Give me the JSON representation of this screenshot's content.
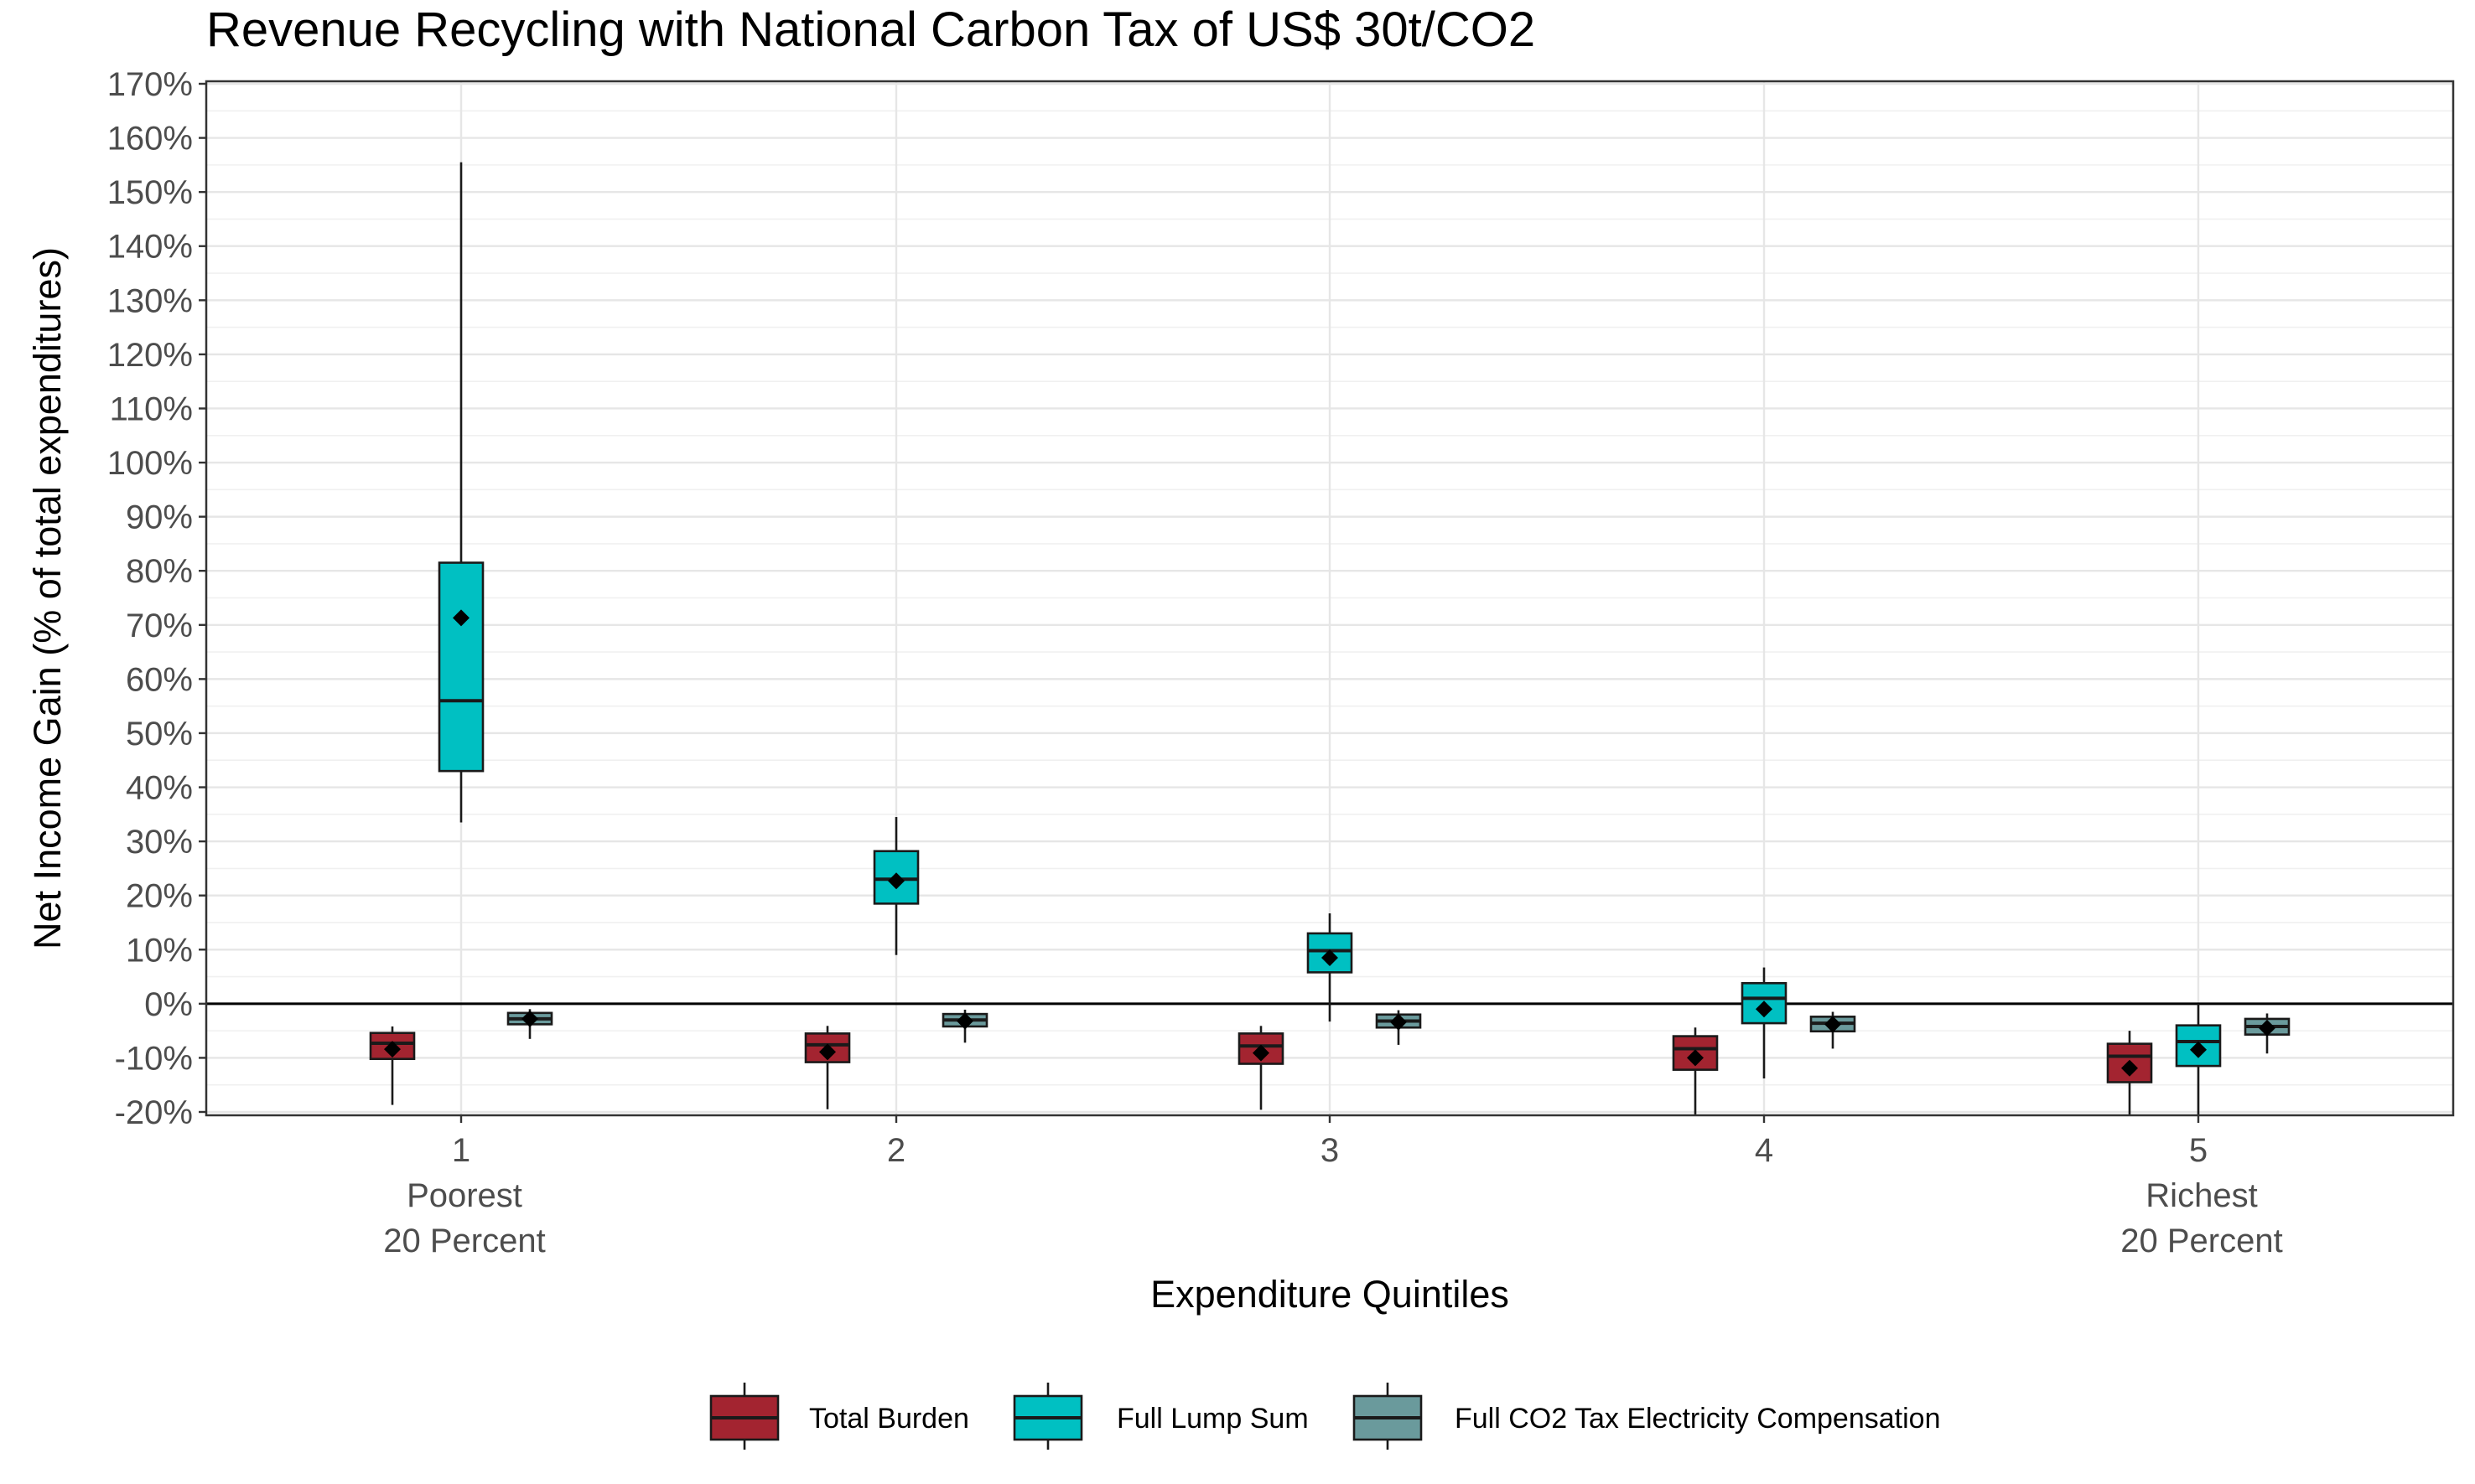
{
  "chart_data": {
    "type": "box",
    "title": "Revenue Recycling with National Carbon Tax of US$ 30t/CO2",
    "xlabel": "Expenditure Quintiles",
    "ylabel": "Net Income Gain (% of total expenditures)",
    "ylim": [
      -20,
      170
    ],
    "y_ticks": [
      -20,
      -10,
      0,
      10,
      20,
      30,
      40,
      50,
      60,
      70,
      80,
      90,
      100,
      110,
      120,
      130,
      140,
      150,
      160,
      170
    ],
    "y_tick_suffix": "%",
    "grid": true,
    "zero_line": true,
    "legend_position": "bottom",
    "categories": [
      {
        "tick": "1",
        "sub1": "Poorest",
        "sub2": "20 Percent"
      },
      {
        "tick": "2",
        "sub1": "",
        "sub2": ""
      },
      {
        "tick": "3",
        "sub1": "",
        "sub2": ""
      },
      {
        "tick": "4",
        "sub1": "",
        "sub2": ""
      },
      {
        "tick": "5",
        "sub1": "Richest",
        "sub2": "20 Percent"
      }
    ],
    "series": [
      {
        "name": "Total Burden",
        "color": "#a32430",
        "boxes": [
          {
            "whisker_low": -18.7,
            "q1": -10.2,
            "median": -7.3,
            "q3": -5.4,
            "whisker_high": -4.2,
            "mean": -8.4
          },
          {
            "whisker_low": -19.5,
            "q1": -10.8,
            "median": -7.6,
            "q3": -5.5,
            "whisker_high": -4.1,
            "mean": -8.9
          },
          {
            "whisker_low": -19.6,
            "q1": -11.1,
            "median": -7.8,
            "q3": -5.5,
            "whisker_high": -4.1,
            "mean": -9.1
          },
          {
            "whisker_low": -20.5,
            "q1": -12.2,
            "median": -8.3,
            "q3": -6.0,
            "whisker_high": -4.4,
            "mean": -10.0
          },
          {
            "whisker_low": -20.5,
            "q1": -14.5,
            "median": -9.7,
            "q3": -7.4,
            "whisker_high": -5.0,
            "mean": -11.9
          }
        ]
      },
      {
        "name": "Full Lump Sum",
        "color": "#00c0c2",
        "boxes": [
          {
            "whisker_low": 33.5,
            "q1": 43.0,
            "median": 56.0,
            "q3": 81.5,
            "whisker_high": 155.5,
            "mean": 71.3
          },
          {
            "whisker_low": 9.0,
            "q1": 18.5,
            "median": 23.0,
            "q3": 28.2,
            "whisker_high": 34.5,
            "mean": 22.7
          },
          {
            "whisker_low": -3.3,
            "q1": 5.8,
            "median": 9.8,
            "q3": 13.0,
            "whisker_high": 16.7,
            "mean": 8.5
          },
          {
            "whisker_low": -13.8,
            "q1": -3.6,
            "median": 1.0,
            "q3": 3.8,
            "whisker_high": 6.7,
            "mean": -1.0
          },
          {
            "whisker_low": -20.5,
            "q1": -11.5,
            "median": -7.0,
            "q3": -4.0,
            "whisker_high": 0.0,
            "mean": -8.5
          }
        ]
      },
      {
        "name": "Full CO2 Tax Electricity Compensation",
        "color": "#6a9a9c",
        "boxes": [
          {
            "whisker_low": -6.5,
            "q1": -3.8,
            "median": -2.8,
            "q3": -1.7,
            "whisker_high": -1.0,
            "mean": -2.8
          },
          {
            "whisker_low": -7.2,
            "q1": -4.2,
            "median": -3.0,
            "q3": -1.9,
            "whisker_high": -1.1,
            "mean": -3.2
          },
          {
            "whisker_low": -7.6,
            "q1": -4.4,
            "median": -3.2,
            "q3": -2.0,
            "whisker_high": -1.2,
            "mean": -3.4
          },
          {
            "whisker_low": -8.3,
            "q1": -5.1,
            "median": -3.6,
            "q3": -2.4,
            "whisker_high": -1.5,
            "mean": -3.8
          },
          {
            "whisker_low": -9.2,
            "q1": -5.7,
            "median": -4.2,
            "q3": -2.8,
            "whisker_high": -1.8,
            "mean": -4.5
          }
        ]
      }
    ]
  }
}
